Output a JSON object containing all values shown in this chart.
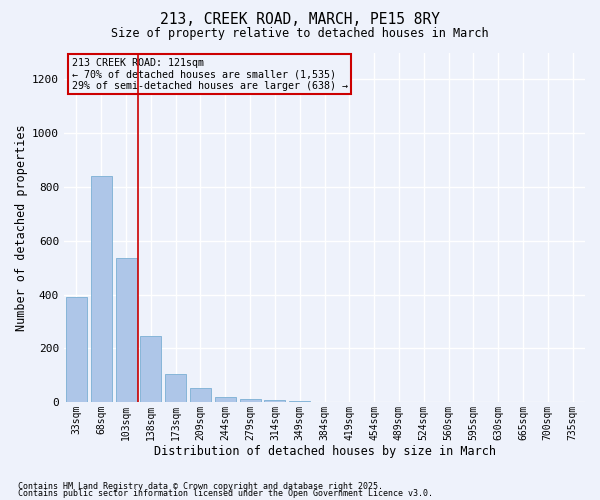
{
  "title_line1": "213, CREEK ROAD, MARCH, PE15 8RY",
  "title_line2": "Size of property relative to detached houses in March",
  "xlabel": "Distribution of detached houses by size in March",
  "ylabel": "Number of detached properties",
  "categories": [
    "33sqm",
    "68sqm",
    "103sqm",
    "138sqm",
    "173sqm",
    "209sqm",
    "244sqm",
    "279sqm",
    "314sqm",
    "349sqm",
    "384sqm",
    "419sqm",
    "454sqm",
    "489sqm",
    "524sqm",
    "560sqm",
    "595sqm",
    "630sqm",
    "665sqm",
    "700sqm",
    "735sqm"
  ],
  "values": [
    390,
    840,
    535,
    247,
    105,
    55,
    20,
    13,
    10,
    5,
    0,
    0,
    0,
    0,
    0,
    0,
    0,
    0,
    0,
    0,
    0
  ],
  "bar_color": "#aec6e8",
  "bar_edge_color": "#7bafd4",
  "highlight_label": "213 CREEK ROAD: 121sqm",
  "annotation_line1": "← 70% of detached houses are smaller (1,535)",
  "annotation_line2": "29% of semi-detached houses are larger (638) →",
  "vline_x": 2.5,
  "vline_color": "#cc0000",
  "annotation_box_color": "#cc0000",
  "ylim": [
    0,
    1300
  ],
  "yticks": [
    0,
    200,
    400,
    600,
    800,
    1000,
    1200
  ],
  "footnote1": "Contains HM Land Registry data © Crown copyright and database right 2025.",
  "footnote2": "Contains public sector information licensed under the Open Government Licence v3.0.",
  "bg_color": "#eef2fb",
  "grid_color": "#ffffff"
}
